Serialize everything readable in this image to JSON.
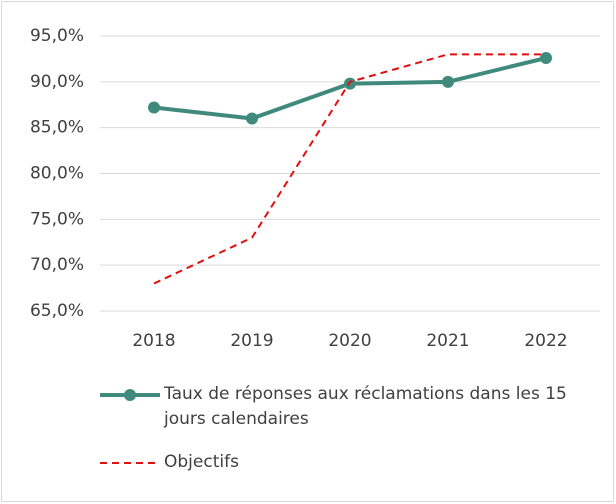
{
  "chart_data": {
    "type": "line",
    "categories": [
      "2018",
      "2019",
      "2020",
      "2021",
      "2022"
    ],
    "series": [
      {
        "name": "Taux de réponses aux réclamations dans les 15 jours calendaires",
        "color": "#3f8a7d",
        "values": [
          87.2,
          86.0,
          89.8,
          90.0,
          92.6
        ],
        "dash": false,
        "marker": true
      },
      {
        "name": "Objectifs",
        "color": "#e01010",
        "values": [
          68,
          73,
          90,
          93,
          93
        ],
        "dash": true,
        "marker": false
      }
    ],
    "ylim": [
      65,
      95
    ],
    "yticks": [
      {
        "value": 65,
        "label": "65,0%"
      },
      {
        "value": 70,
        "label": "70,0%"
      },
      {
        "value": 75,
        "label": "75,0%"
      },
      {
        "value": 80,
        "label": "80,0%"
      },
      {
        "value": 85,
        "label": "85,0%"
      },
      {
        "value": 90,
        "label": "90,0%"
      },
      {
        "value": 95,
        "label": "95,0%"
      }
    ],
    "grid": true,
    "legend": "bottom"
  }
}
